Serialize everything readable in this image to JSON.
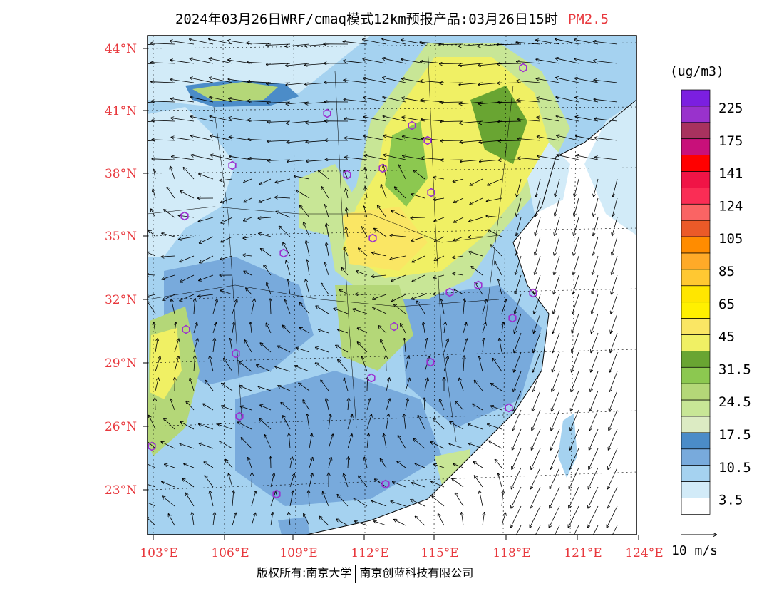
{
  "title": {
    "main": "2024年03月26日WRF/cmaq模式12km预报产品:03月26日15时",
    "pollutant": "PM2.5"
  },
  "axes": {
    "lat_labels": [
      "44°N",
      "41°N",
      "38°N",
      "35°N",
      "32°N",
      "29°N",
      "26°N",
      "23°N"
    ],
    "lon_labels": [
      "103°E",
      "106°E",
      "109°E",
      "112°E",
      "115°E",
      "118°E",
      "121°E",
      "124°E"
    ]
  },
  "legend": {
    "unit": "(ug/m3)",
    "bins": [
      {
        "color": "#7b1fe0",
        "label": "225"
      },
      {
        "color": "#9932cc",
        "label": ""
      },
      {
        "color": "#a8325e",
        "label": "175"
      },
      {
        "color": "#c8107a",
        "label": ""
      },
      {
        "color": "#ff0000",
        "label": "141"
      },
      {
        "color": "#f01446",
        "label": ""
      },
      {
        "color": "#fa2d55",
        "label": "124"
      },
      {
        "color": "#fa6464",
        "label": ""
      },
      {
        "color": "#eb5a28",
        "label": "105"
      },
      {
        "color": "#ff8c00",
        "label": ""
      },
      {
        "color": "#ffaa28",
        "label": "85"
      },
      {
        "color": "#ffc832",
        "label": ""
      },
      {
        "color": "#ffe600",
        "label": "65"
      },
      {
        "color": "#fff000",
        "label": ""
      },
      {
        "color": "#fae664",
        "label": "45"
      },
      {
        "color": "#f0f064",
        "label": ""
      },
      {
        "color": "#69a532",
        "label": "31.5"
      },
      {
        "color": "#8cc850",
        "label": ""
      },
      {
        "color": "#b4d778",
        "label": "24.5"
      },
      {
        "color": "#c8e696",
        "label": ""
      },
      {
        "color": "#dcebc3",
        "label": "17.5"
      },
      {
        "color": "#4b8cc8",
        "label": ""
      },
      {
        "color": "#78aadc",
        "label": "10.5"
      },
      {
        "color": "#a5d2f0",
        "label": ""
      },
      {
        "color": "#d2ebf8",
        "label": "3.5"
      },
      {
        "color": "#ffffff",
        "label": ""
      }
    ]
  },
  "wind_reference": "10 m/s",
  "footer": {
    "left": "版权所有:南京大学",
    "right": "南京创蓝科技有限公司"
  },
  "colors": {
    "label_red": "#e8383d",
    "city_marker": "#9b30d0",
    "water": "#ffffff"
  }
}
